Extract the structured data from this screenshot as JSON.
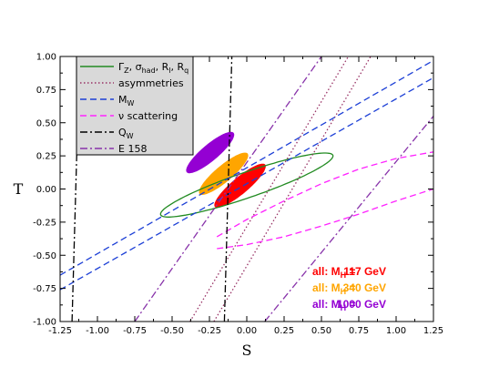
{
  "chart_data": {
    "type": "contour",
    "xlabel": "S",
    "ylabel": "T",
    "xlim": [
      -1.25,
      1.25
    ],
    "ylim": [
      -1.0,
      1.0
    ],
    "x_ticks": [
      "-1.25",
      "-1.00",
      "-0.75",
      "-0.50",
      "-0.25",
      "0.00",
      "0.25",
      "0.50",
      "0.75",
      "1.00",
      "1.25"
    ],
    "y_ticks": [
      "-1.00",
      "-0.75",
      "-0.50",
      "-0.25",
      "0.00",
      "0.25",
      "0.50",
      "0.75",
      "1.00"
    ],
    "legend": {
      "placement": "top-left",
      "entries": [
        {
          "label": "Γ_Z, σ_had, R_l, R_q",
          "display": [
            "Γ",
            "Z",
            ", σ",
            "had",
            ", R",
            "l",
            ", R",
            "q"
          ],
          "color": "#228B22",
          "style": "solid"
        },
        {
          "label": "asymmetries",
          "color": "#993366",
          "style": "dotted"
        },
        {
          "label": "M_W",
          "display": [
            "M",
            "W"
          ],
          "color": "#1c3fd6",
          "style": "dashed"
        },
        {
          "label": "ν scattering",
          "color": "#ff22ff",
          "style": "dashed"
        },
        {
          "label": "Q_W",
          "display": [
            "Q",
            "W"
          ],
          "color": "#000000",
          "style": "dashdot"
        },
        {
          "label": "E 158",
          "color": "#8833aa",
          "style": "dashdot"
        }
      ]
    },
    "constraints": [
      {
        "name": "Γ_Z, σ_had, R_l, R_q",
        "type": "ellipse",
        "center": [
          0.0,
          0.03
        ],
        "semi_axes": [
          0.61,
          0.085
        ],
        "angle_deg": 19,
        "color": "#228B22",
        "style": "solid"
      },
      {
        "name": "asymmetries",
        "type": "band",
        "lines": [
          [
            [
              -0.38,
              -1.0
            ],
            [
              0.68,
              1.0
            ]
          ],
          [
            [
              -0.22,
              -1.0
            ],
            [
              0.83,
              1.0
            ]
          ]
        ],
        "color": "#993366",
        "style": "dotted"
      },
      {
        "name": "M_W",
        "type": "band",
        "lines": [
          [
            [
              -1.25,
              -0.76
            ],
            [
              1.25,
              0.84
            ]
          ],
          [
            [
              -1.25,
              -0.65
            ],
            [
              1.25,
              0.97
            ]
          ]
        ],
        "color": "#1c3fd6",
        "style": "dashed"
      },
      {
        "name": "ν scattering",
        "type": "band",
        "curves": [
          [
            [
              -0.2,
              -0.45
            ],
            [
              0.0,
              -0.42
            ],
            [
              0.25,
              -0.36
            ],
            [
              0.5,
              -0.28
            ],
            [
              0.75,
              -0.19
            ],
            [
              1.0,
              -0.09
            ],
            [
              1.25,
              0.0
            ]
          ],
          [
            [
              -0.2,
              -0.36
            ],
            [
              0.0,
              -0.23
            ],
            [
              0.25,
              -0.09
            ],
            [
              0.5,
              0.04
            ],
            [
              0.75,
              0.15
            ],
            [
              1.0,
              0.23
            ],
            [
              1.25,
              0.28
            ]
          ]
        ],
        "color": "#ff22ff",
        "style": "dashed"
      },
      {
        "name": "Q_W",
        "type": "band",
        "lines": [
          [
            [
              -1.17,
              -1.0
            ],
            [
              -1.12,
              1.0
            ]
          ],
          [
            [
              -0.15,
              -1.0
            ],
            [
              -0.1,
              1.0
            ]
          ]
        ],
        "color": "#000000",
        "style": "dashdot"
      },
      {
        "name": "E 158",
        "type": "band",
        "lines": [
          [
            [
              -0.75,
              -1.0
            ],
            [
              0.5,
              1.0
            ]
          ],
          [
            [
              0.12,
              -1.0
            ],
            [
              1.25,
              0.55
            ]
          ]
        ],
        "color": "#8833aa",
        "style": "dashdot"
      }
    ],
    "fits": [
      {
        "label": "all: M_H = 117 GeV",
        "mh": "117",
        "center": [
          -0.045,
          0.025
        ],
        "semi_axes": [
          0.22,
          0.055
        ],
        "angle_deg": 40,
        "color": "#ff0000"
      },
      {
        "label": "all: M_H = 340 GeV",
        "mh": "340",
        "center": [
          -0.155,
          0.115
        ],
        "semi_axes": [
          0.21,
          0.055
        ],
        "angle_deg": 40,
        "color": "#ffa500"
      },
      {
        "label": "all: M_H = 1000 GeV",
        "mh": "1000",
        "center": [
          -0.245,
          0.275
        ],
        "semi_axes": [
          0.205,
          0.055
        ],
        "angle_deg": 40,
        "color": "#9400d3"
      }
    ],
    "annotations": [
      {
        "text": "all: M_H = 117 GeV",
        "prefix": "all: M",
        "sub": "H",
        "eq": " = ",
        "value": "117",
        "unit": " GeV",
        "color": "#ff0000"
      },
      {
        "text": "all: M_H = 340 GeV",
        "prefix": "all: M",
        "sub": "H",
        "eq": " = ",
        "value": "340",
        "unit": " GeV",
        "color": "#ffa500"
      },
      {
        "text": "all: M_H = 1000 GeV",
        "prefix": "all: M",
        "sub": "H",
        "eq": " = ",
        "value": "1000",
        "unit": " GeV",
        "color": "#9400d3"
      }
    ]
  }
}
